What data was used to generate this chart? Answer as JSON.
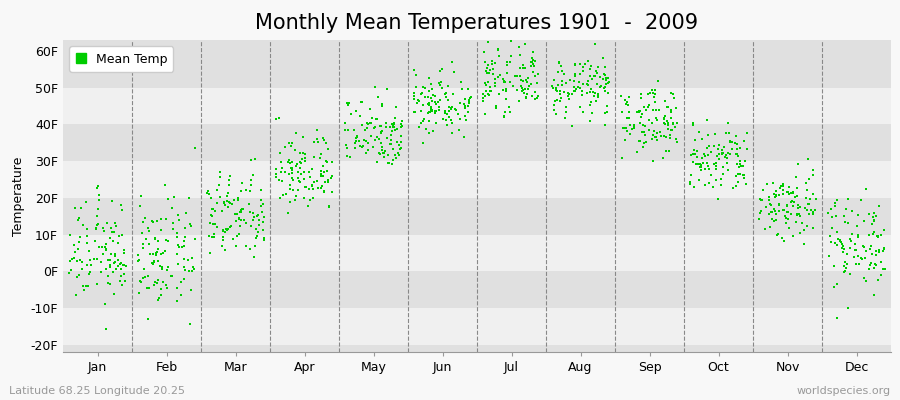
{
  "title": "Monthly Mean Temperatures 1901  -  2009",
  "ylabel": "Temperature",
  "months": [
    "Jan",
    "Feb",
    "Mar",
    "Apr",
    "May",
    "Jun",
    "Jul",
    "Aug",
    "Sep",
    "Oct",
    "Nov",
    "Dec"
  ],
  "yticks": [
    -20,
    -10,
    0,
    10,
    20,
    30,
    40,
    50,
    60
  ],
  "ylim": [
    -22,
    63
  ],
  "dot_color": "#00cc00",
  "bg_light": "#f0f0f0",
  "bg_dark": "#e0e0e0",
  "legend_label": "Mean Temp",
  "bottom_left": "Latitude 68.25 Longitude 20.25",
  "bottom_right": "worldspecies.org",
  "n_years": 109,
  "mean_temps_F": [
    5.0,
    4.0,
    15.0,
    27.0,
    38.0,
    46.0,
    52.0,
    50.0,
    41.0,
    30.0,
    18.0,
    8.0
  ],
  "std_temps_F": [
    7.0,
    7.5,
    6.0,
    5.5,
    5.0,
    4.5,
    4.0,
    4.0,
    4.5,
    5.0,
    5.0,
    6.5
  ],
  "title_fontsize": 15,
  "axis_fontsize": 9,
  "tick_fontsize": 9,
  "dot_size": 3
}
